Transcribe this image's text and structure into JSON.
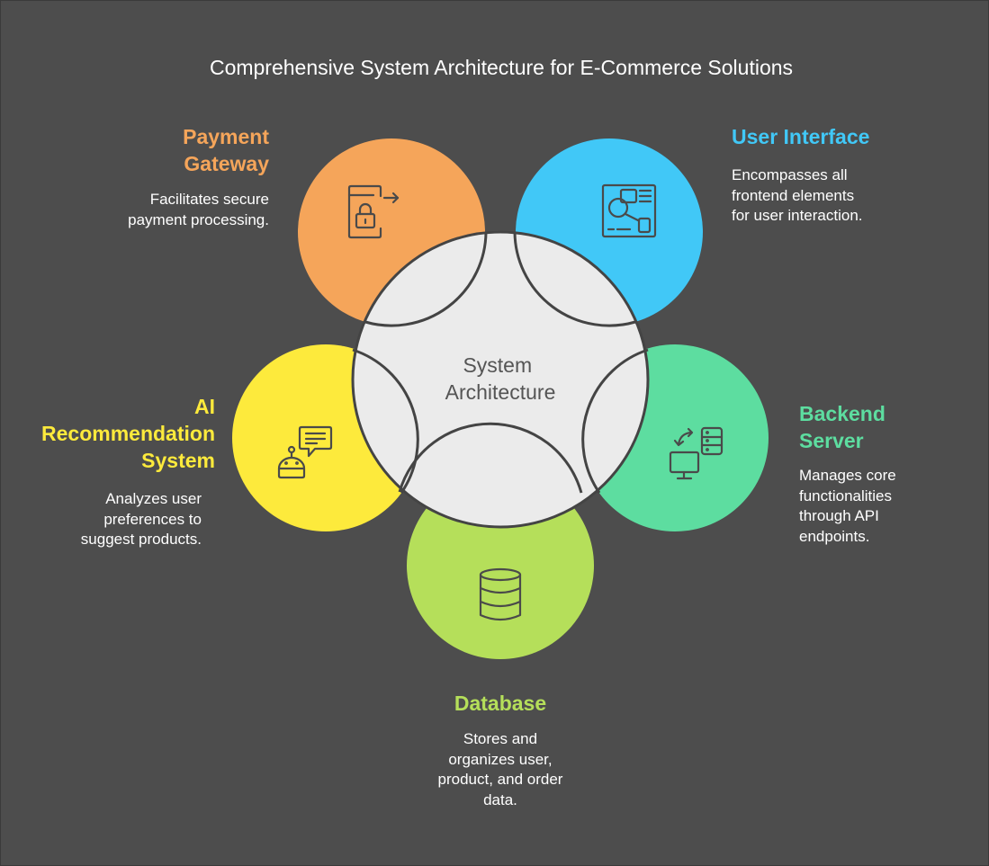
{
  "title": "Comprehensive System Architecture for E-Commerce Solutions",
  "center": {
    "label": "System\nArchitecture",
    "fill": "#ebebeb"
  },
  "nodes": {
    "payment": {
      "title": "Payment\nGateway",
      "description": "Facilitates secure\npayment processing.",
      "color": "#f5a55a",
      "icon": "secure-payment-icon"
    },
    "ui": {
      "title": "User Interface",
      "description": "Encompasses all\nfrontend elements\nfor user interaction.",
      "color": "#41c8f7",
      "icon": "interface-layout-icon"
    },
    "backend": {
      "title": "Backend\nServer",
      "description": "Manages core\nfunctionalities\nthrough API\nendpoints.",
      "color": "#5ddda0",
      "icon": "server-sync-icon"
    },
    "database": {
      "title": "Database",
      "description": "Stores and\norganizes user,\nproduct, and order\ndata.",
      "color": "#b5df5a",
      "icon": "database-icon"
    },
    "ai": {
      "title": "AI\nRecommendation\nSystem",
      "description": "Analyzes user\npreferences to\nsuggest products.",
      "color": "#fdea3c",
      "icon": "robot-chat-icon"
    }
  },
  "colors": {
    "background": "#4d4d4d",
    "stroke": "#3d3d3d"
  }
}
